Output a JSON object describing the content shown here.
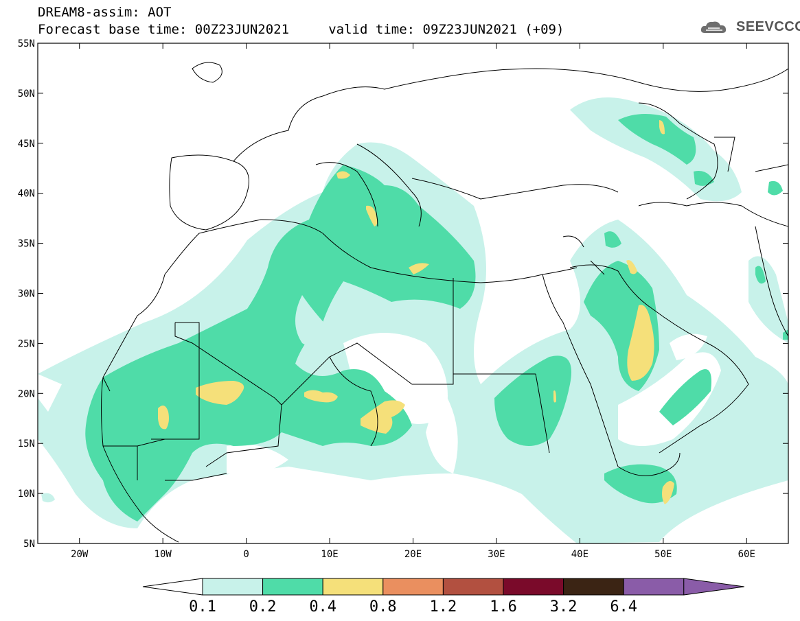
{
  "header": {
    "line1": "DREAM8-assim: AOT",
    "line2": "Forecast base time: 00Z23JUN2021     valid time: 09Z23JUN2021 (+09)",
    "logo_text": "SEEVCCC"
  },
  "map": {
    "lon_range": [
      -25,
      65
    ],
    "lat_range": [
      5,
      55
    ],
    "lon_ticks": [
      {
        "v": -20,
        "label": "20W"
      },
      {
        "v": -10,
        "label": "10W"
      },
      {
        "v": 0,
        "label": "0"
      },
      {
        "v": 10,
        "label": "10E"
      },
      {
        "v": 20,
        "label": "20E"
      },
      {
        "v": 30,
        "label": "30E"
      },
      {
        "v": 40,
        "label": "40E"
      },
      {
        "v": 50,
        "label": "50E"
      },
      {
        "v": 60,
        "label": "60E"
      }
    ],
    "lat_ticks": [
      {
        "v": 5,
        "label": "5N"
      },
      {
        "v": 10,
        "label": "10N"
      },
      {
        "v": 15,
        "label": "15N"
      },
      {
        "v": 20,
        "label": "20N"
      },
      {
        "v": 25,
        "label": "25N"
      },
      {
        "v": 30,
        "label": "30N"
      },
      {
        "v": 35,
        "label": "35N"
      },
      {
        "v": 40,
        "label": "40N"
      },
      {
        "v": 45,
        "label": "45N"
      },
      {
        "v": 50,
        "label": "50N"
      },
      {
        "v": 55,
        "label": "55N"
      }
    ]
  },
  "legend": {
    "labels": [
      "0.1",
      "0.2",
      "0.4",
      "0.8",
      "1.2",
      "1.6",
      "3.2",
      "6.4"
    ],
    "colors": [
      "#ffffff",
      "#c8f2ea",
      "#4fdca8",
      "#f5e07a",
      "#ea8f5f",
      "#b25040",
      "#7a0a2a",
      "#3b2414",
      "#8a5ca8"
    ]
  }
}
